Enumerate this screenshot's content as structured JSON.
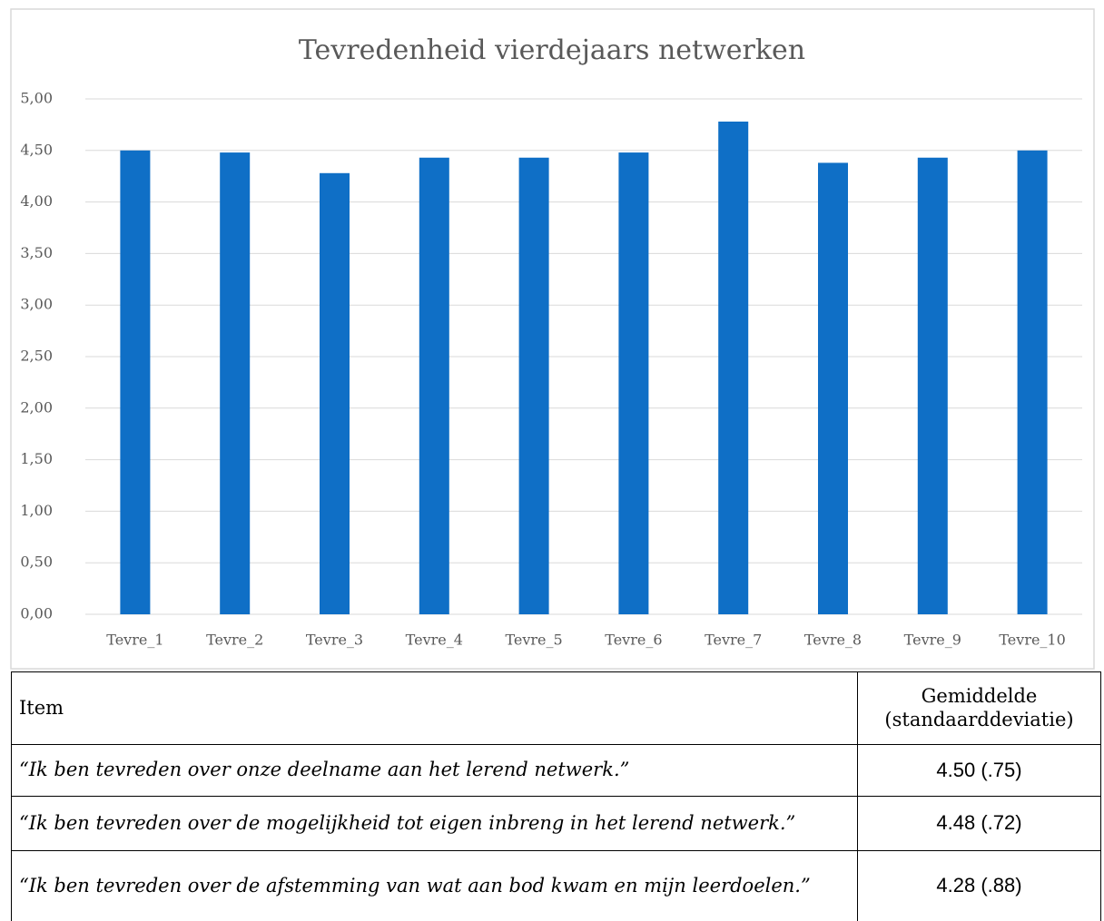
{
  "chart_data": {
    "type": "bar",
    "title": "Tevredenheid vierdejaars netwerken",
    "categories": [
      "Tevre_1",
      "Tevre_2",
      "Tevre_3",
      "Tevre_4",
      "Tevre_5",
      "Tevre_6",
      "Tevre_7",
      "Tevre_8",
      "Tevre_9",
      "Tevre_10"
    ],
    "values": [
      4.5,
      4.48,
      4.28,
      4.43,
      4.43,
      4.48,
      4.78,
      4.38,
      4.43,
      4.5
    ],
    "color": "#0f6fc6",
    "ylim": [
      0,
      5
    ],
    "yticks": [
      {
        "value": 0,
        "label": "0,00"
      },
      {
        "value": 0.5,
        "label": "0,50"
      },
      {
        "value": 1,
        "label": "1,00"
      },
      {
        "value": 1.5,
        "label": "1,50"
      },
      {
        "value": 2,
        "label": "2,00"
      },
      {
        "value": 2.5,
        "label": "2,50"
      },
      {
        "value": 3,
        "label": "3,00"
      },
      {
        "value": 3.5,
        "label": "3,50"
      },
      {
        "value": 4,
        "label": "4,00"
      },
      {
        "value": 4.5,
        "label": "4,50"
      },
      {
        "value": 5,
        "label": "5,00"
      }
    ],
    "grid": true
  },
  "table": {
    "header": [
      "Item",
      "Gemiddelde (standaarddeviatie)"
    ],
    "rows": [
      [
        "“Ik ben tevreden over onze deelname aan het lerend netwerk.”",
        "4.50 (.75)"
      ],
      [
        "“Ik ben tevreden over de mogelijkheid tot eigen inbreng in het lerend netwerk.”",
        "4.48 (.72)"
      ],
      [
        "“Ik ben tevreden over de afstemming van wat aan bod kwam en mijn leerdoelen.”",
        "4.28 (.88)"
      ]
    ]
  }
}
